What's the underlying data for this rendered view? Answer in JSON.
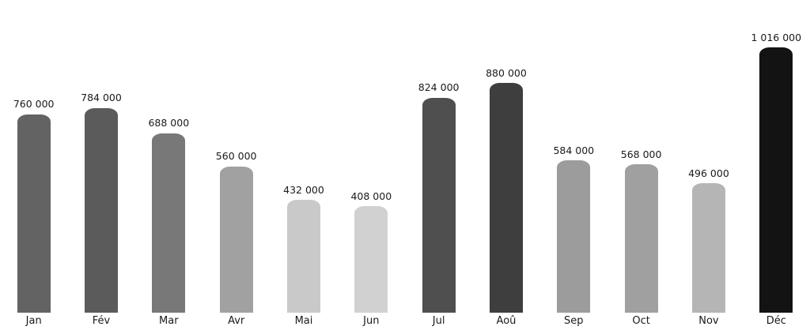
{
  "chart_data": {
    "type": "bar",
    "title": "",
    "xlabel": "",
    "ylabel": "",
    "categories": [
      "Jan",
      "Fév",
      "Mar",
      "Avr",
      "Mai",
      "Jun",
      "Jul",
      "Aoû",
      "Sep",
      "Oct",
      "Nov",
      "Déc"
    ],
    "values": [
      760000,
      784000,
      688000,
      560000,
      432000,
      408000,
      824000,
      880000,
      584000,
      568000,
      496000,
      1016000
    ],
    "value_labels": [
      "760 000",
      "784 000",
      "688 000",
      "560 000",
      "432 000",
      "408 000",
      "824 000",
      "880 000",
      "584 000",
      "568 000",
      "496 000",
      "1 016 000"
    ],
    "bar_colors": [
      "#636363",
      "#5b5b5b",
      "#787878",
      "#a1a1a1",
      "#c9c9c9",
      "#d1d1d1",
      "#4f4f4f",
      "#3e3e3e",
      "#9c9c9c",
      "#a0a0a0",
      "#b5b5b5",
      "#131313"
    ],
    "ylim": [
      0,
      1016000
    ],
    "grid": false,
    "legend": false,
    "axes_visible": false,
    "value_label_position": "above-bar",
    "label_color": "#1a1a1a",
    "background_color": "#ffffff"
  }
}
